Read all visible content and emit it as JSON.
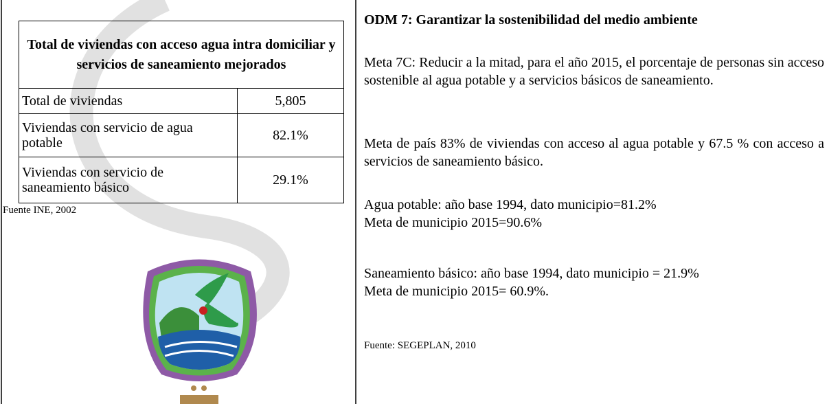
{
  "table": {
    "title": "Total de viviendas con acceso agua intra domiciliar y servicios de saneamiento mejorados",
    "rows": [
      [
        "Total de viviendas",
        "5,805"
      ],
      [
        "Viviendas con servicio de agua potable",
        "82.1%"
      ],
      [
        "Viviendas con servicio de saneamiento básico",
        "29.1%"
      ]
    ],
    "source": "Fuente INE, 2002"
  },
  "goal": {
    "heading": "ODM 7: Garantizar la sostenibilidad del medio ambiente",
    "paragraphs": [
      "Meta 7C: Reducir a la mitad, para el año 2015, el porcentaje de personas sin acceso sostenible al agua potable y a servicios básicos de saneamiento.",
      "Meta de país 83% de viviendas con acceso al agua potable y 67.5 % con acceso a servicios de saneamiento básico."
    ],
    "indicators": [
      [
        "Agua potable: año base 1994, dato municipio=81.2%",
        "Meta de municipio 2015=90.6%"
      ],
      [
        "Saneamiento básico: año base 1994, dato municipio = 21.9%",
        "Meta de municipio 2015= 60.9%."
      ]
    ],
    "source": "Fuente: SEGEPLAN, 2010"
  }
}
